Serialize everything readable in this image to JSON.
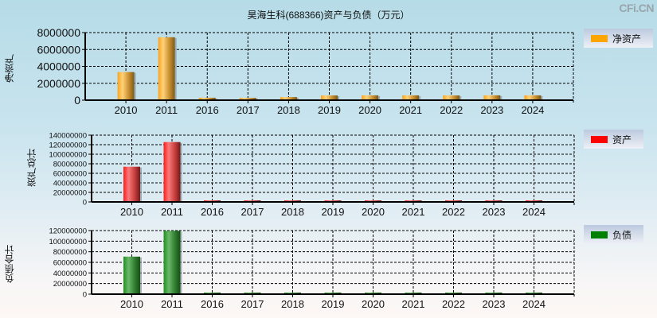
{
  "header": {
    "title": "昊海生科(688366)资产与负债（万元）",
    "watermark": "CFi.CN"
  },
  "colors": {
    "net_assets": "#ffa500",
    "assets": "#ff0000",
    "liabilities": "#008000"
  },
  "chart_data": [
    {
      "type": "bar",
      "title": "昊海生科(688366)资产与负债（万元）",
      "ylabel": "净资产",
      "legend": "净资产",
      "legend_position": "right",
      "grid": true,
      "categories": [
        "2010",
        "2011",
        "2016",
        "2017",
        "2018",
        "2019",
        "2020",
        "2021",
        "2022",
        "2023",
        "2024"
      ],
      "values": [
        3330000,
        7450000,
        290000,
        270000,
        370000,
        560000,
        570000,
        570000,
        560000,
        570000,
        570000
      ],
      "yticks": [
        "0",
        "2000000",
        "4000000",
        "6000000",
        "8000000"
      ],
      "ylim": [
        0,
        8000000
      ]
    },
    {
      "type": "bar",
      "ylabel": "资产总计",
      "legend": "资产",
      "legend_position": "right",
      "grid": true,
      "categories": [
        "2010",
        "2011",
        "2016",
        "2017",
        "2018",
        "2019",
        "2020",
        "2021",
        "2022",
        "2023",
        "2024"
      ],
      "values": [
        73800000,
        125500000,
        330000,
        310000,
        420000,
        620000,
        640000,
        660000,
        680000,
        690000,
        700000
      ],
      "yticks": [
        "0",
        "20000000",
        "40000000",
        "60000000",
        "80000000",
        "100000000",
        "120000000",
        "140000000"
      ],
      "ylim": [
        0,
        140000000
      ]
    },
    {
      "type": "bar",
      "ylabel": "负债合计",
      "legend": "负债",
      "legend_position": "right",
      "grid": true,
      "categories": [
        "2010",
        "2011",
        "2016",
        "2017",
        "2018",
        "2019",
        "2020",
        "2021",
        "2022",
        "2023",
        "2024"
      ],
      "values": [
        70800000,
        119500000,
        40000,
        40000,
        50000,
        60000,
        70000,
        90000,
        110000,
        120000,
        130000
      ],
      "yticks": [
        "0",
        "20000000",
        "40000000",
        "60000000",
        "80000000",
        "100000000",
        "120000000"
      ],
      "ylim": [
        0,
        120000000
      ]
    }
  ]
}
